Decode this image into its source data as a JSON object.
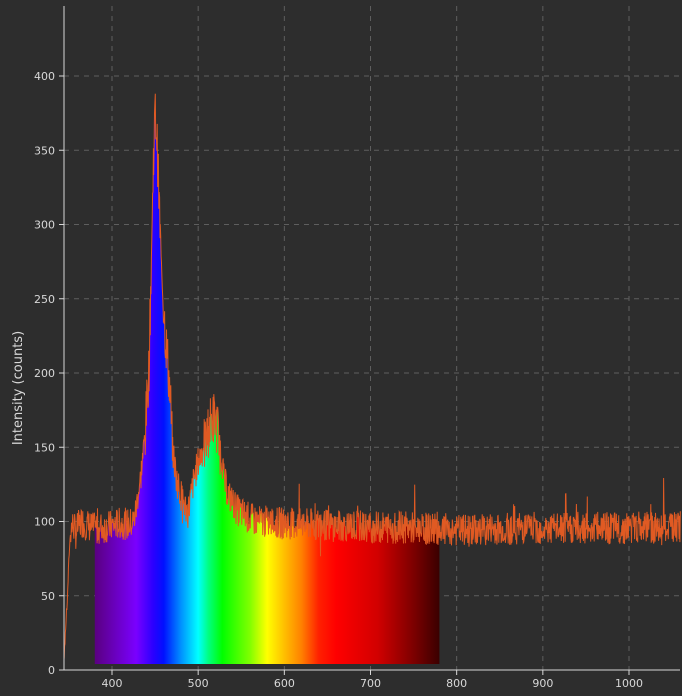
{
  "chart_data": {
    "type": "line",
    "title": "",
    "xlabel": "",
    "ylabel": "Intensity (counts)",
    "xlim": [
      340,
      1060
    ],
    "ylim": [
      0,
      445
    ],
    "x_ticks": [
      "400",
      "500",
      "600",
      "700",
      "800",
      "900",
      "1000"
    ],
    "y_ticks": [
      "0",
      "50",
      "100",
      "150",
      "200",
      "250",
      "300",
      "350",
      "400"
    ],
    "grid": true,
    "legend": "none",
    "spectrum_fill_range": [
      380,
      780
    ],
    "colors": {
      "background": "#2d2d2d",
      "axis": "#d8d8d8",
      "grid": "#5e5e5e",
      "series": "#e05a23",
      "text": "#d8d8d8"
    },
    "series": [
      {
        "x": [
          340,
          343,
          345,
          348,
          350,
          352,
          355,
          358,
          360,
          365,
          370,
          380,
          390,
          400,
          410,
          420,
          425,
          428,
          430,
          433,
          435,
          438,
          440,
          443,
          445,
          447,
          448,
          450,
          452,
          455,
          457,
          460,
          462,
          465,
          468,
          470,
          475,
          480,
          485,
          488,
          490,
          495,
          500,
          505,
          510,
          512,
          515,
          518,
          520,
          522,
          525,
          528,
          530,
          535,
          540,
          545,
          550,
          555,
          560,
          570,
          580,
          590,
          600,
          620,
          640,
          660,
          680,
          700,
          720,
          740,
          760,
          780,
          800,
          820,
          840,
          860,
          880,
          900,
          920,
          940,
          960,
          980,
          1000,
          1020,
          1040,
          1060
        ],
        "y": [
          -15,
          -5,
          15,
          45,
          75,
          95,
          98,
          92,
          96,
          100,
          98,
          95,
          96,
          97,
          99,
          98,
          100,
          108,
          118,
          128,
          140,
          155,
          175,
          205,
          260,
          310,
          345,
          375,
          360,
          310,
          275,
          245,
          225,
          205,
          180,
          150,
          128,
          118,
          110,
          106,
          112,
          128,
          140,
          148,
          155,
          162,
          168,
          170,
          168,
          163,
          152,
          140,
          128,
          118,
          113,
          108,
          106,
          104,
          102,
          100,
          100,
          99,
          99,
          98,
          98,
          97,
          97,
          96,
          96,
          96,
          95,
          95,
          94,
          94,
          95,
          95,
          96,
          95,
          95,
          96,
          96,
          95,
          96,
          96,
          95,
          96
        ]
      }
    ]
  }
}
